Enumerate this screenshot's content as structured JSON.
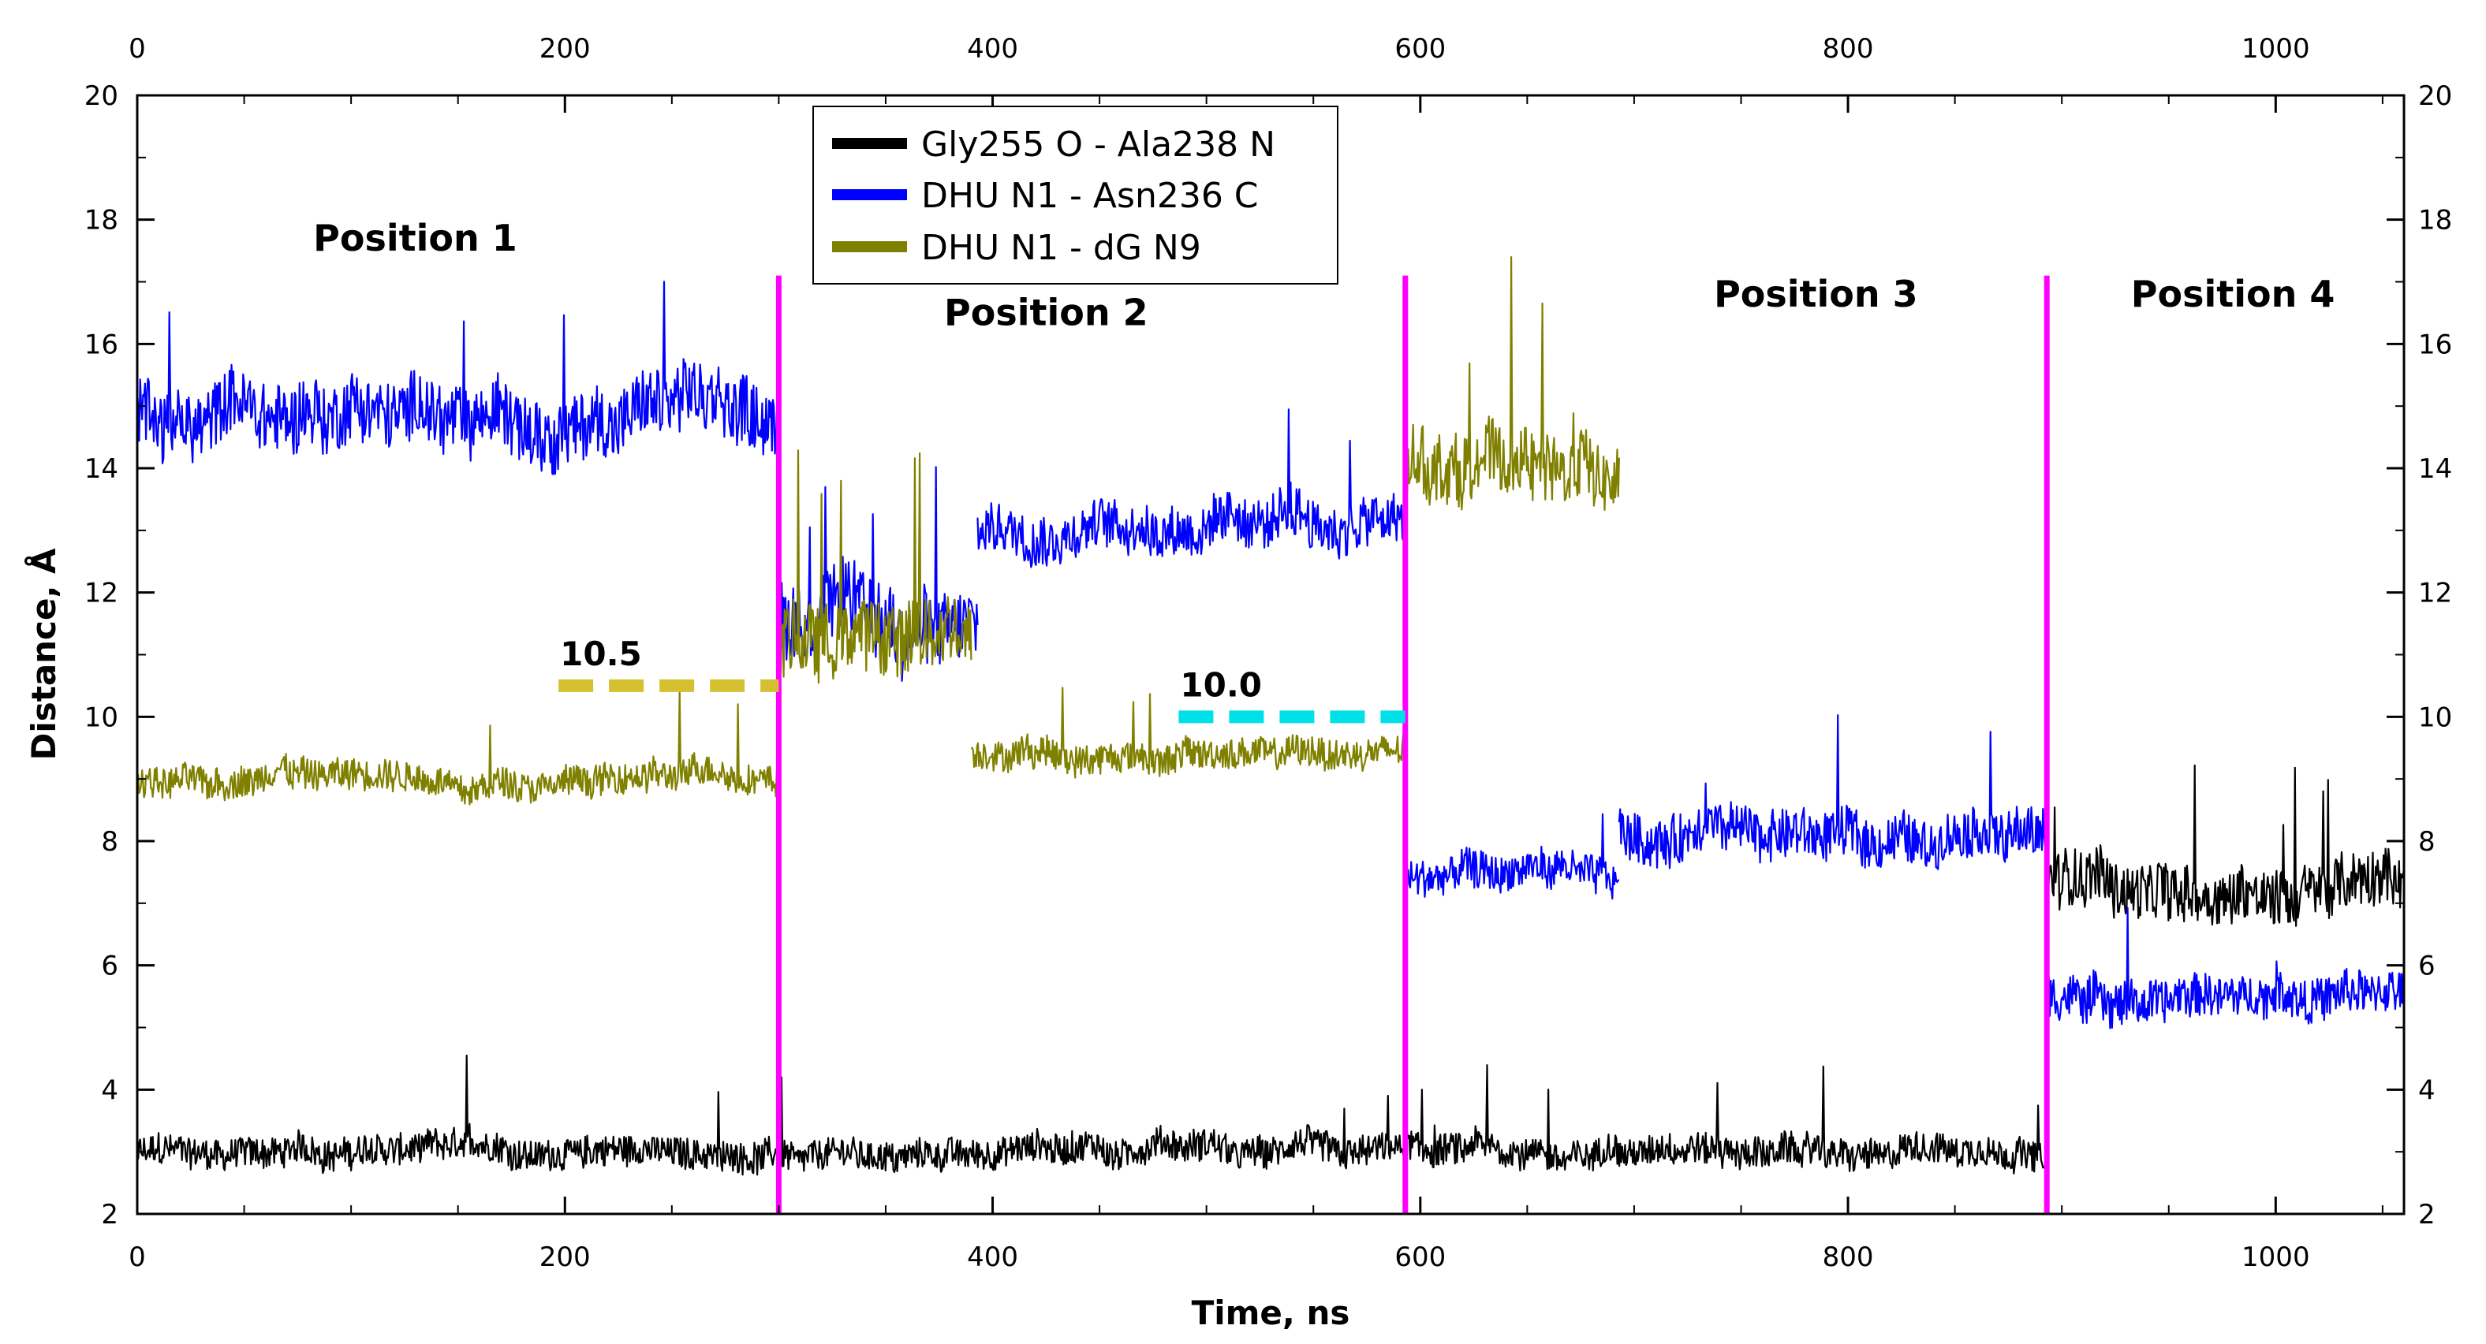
{
  "chart_data": {
    "type": "line",
    "title": "",
    "xlabel": "Time, ns",
    "ylabel": "Distance, Å",
    "xlim": [
      0,
      1060
    ],
    "ylim": [
      2,
      20
    ],
    "x_ticks": [
      "0",
      "200",
      "400",
      "600",
      "800",
      "1000"
    ],
    "x_tick_values": [
      0,
      200,
      400,
      600,
      800,
      1000
    ],
    "y_ticks": [
      "2",
      "4",
      "6",
      "8",
      "10",
      "12",
      "14",
      "16",
      "18",
      "20"
    ],
    "y_tick_values": [
      2,
      4,
      6,
      8,
      10,
      12,
      14,
      16,
      18,
      20
    ],
    "top_axis_mirrored": true,
    "right_axis_mirrored": true,
    "grid": false,
    "legend_position": "top-center",
    "series": [
      {
        "name": "Gly255 O - Ala238 N",
        "color": "#000000",
        "segments": [
          {
            "x_start": 0,
            "x_end": 893,
            "mean": 3.0,
            "noise": 0.25,
            "spike_count": 12
          },
          {
            "x_start": 893,
            "x_end": 1060,
            "mean": 7.3,
            "noise": 0.45,
            "spike_count": 6
          }
        ]
      },
      {
        "name": "DHU N1 - Asn236 C",
        "color": "#0000ff",
        "segments": [
          {
            "x_start": 0,
            "x_end": 300,
            "mean": 14.9,
            "noise": 0.55,
            "spike_count": 4
          },
          {
            "x_start": 300,
            "x_end": 393,
            "mean": 11.6,
            "noise": 0.6,
            "spike_count": 4
          },
          {
            "x_start": 393,
            "x_end": 593,
            "mean": 13.1,
            "noise": 0.4,
            "spike_count": 2
          },
          {
            "x_start": 593,
            "x_end": 693,
            "mean": 7.4,
            "noise": 0.3,
            "spike_count": 1
          },
          {
            "x_start": 693,
            "x_end": 893,
            "mean": 8.1,
            "noise": 0.4,
            "spike_count": 3
          },
          {
            "x_start": 893,
            "x_end": 1060,
            "mean": 5.5,
            "noise": 0.35,
            "spike_count": 2
          }
        ]
      },
      {
        "name": "DHU N1 - dG N9",
        "color": "#808000",
        "segments": [
          {
            "x_start": 0,
            "x_end": 300,
            "mean": 9.0,
            "noise": 0.25,
            "spike_count": 3
          },
          {
            "x_start": 300,
            "x_end": 390,
            "mean": 11.3,
            "noise": 0.6,
            "spike_count": 5
          },
          {
            "x_start": 390,
            "x_end": 593,
            "mean": 9.4,
            "noise": 0.25,
            "spike_count": 3
          },
          {
            "x_start": 593,
            "x_end": 693,
            "mean": 14.0,
            "noise": 0.55,
            "spike_count": 4
          }
        ]
      }
    ],
    "vertical_lines": [
      {
        "x": 300,
        "color": "#ff00ff"
      },
      {
        "x": 593,
        "color": "#ff00ff"
      },
      {
        "x": 893,
        "color": "#ff00ff"
      }
    ],
    "reference_lines": [
      {
        "label": "10.5",
        "y": 10.5,
        "x_start": 197,
        "x_end": 300,
        "color": "#d4c030",
        "style": "dashed"
      },
      {
        "label": "10.0",
        "y": 10.0,
        "x_start": 487,
        "x_end": 593,
        "color": "#00e0e8",
        "style": "dashed"
      }
    ],
    "region_labels": [
      {
        "text": "Position 1",
        "x": 130,
        "y": 17.5
      },
      {
        "text": "Position 2",
        "x": 425,
        "y": 16.3
      },
      {
        "text": "Position 3",
        "x": 785,
        "y": 16.6
      },
      {
        "text": "Position 4",
        "x": 980,
        "y": 16.6
      }
    ]
  }
}
